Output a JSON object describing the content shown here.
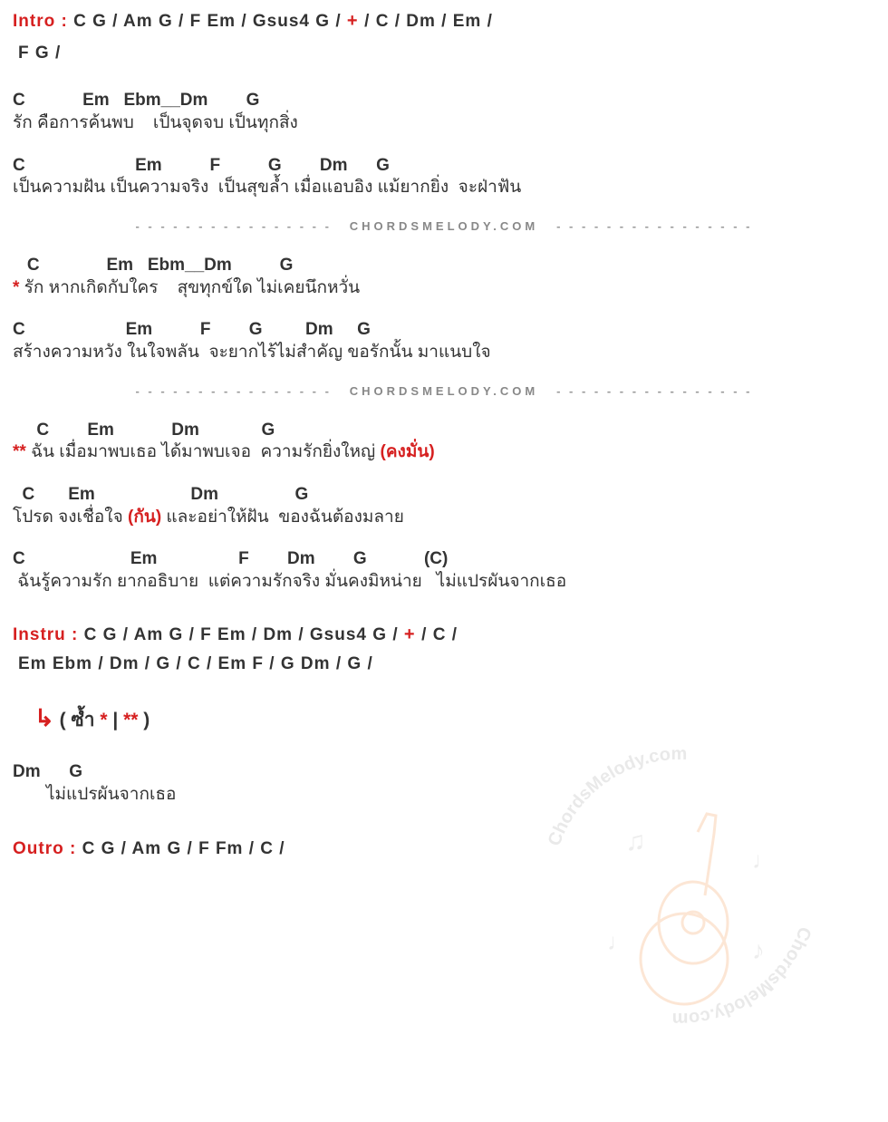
{
  "intro": {
    "label": "Intro :",
    "line1_parts": [
      "C",
      "G",
      "/",
      "Am",
      "G",
      "/",
      "F",
      "Em",
      "/",
      "Gsus4",
      "G",
      "/",
      "+",
      "/",
      "C",
      "/",
      "Dm",
      "/",
      "Em",
      "/"
    ],
    "line2_parts": [
      "F",
      "G",
      "/"
    ]
  },
  "verse1": {
    "line1": {
      "chords": "C            Em   Ebm__Dm        G",
      "lyrics": "รัก คือการค้นพบ    เป็นจุดจบ เป็นทุกสิ่ง"
    },
    "line2": {
      "chords": "C                       Em          F          G        Dm      G",
      "lyrics": "เป็นความฝัน เป็นความจริง  เป็นสุขล้ำ เมื่อแอบอิง แม้ยากยิ่ง  จะฝ่าฟัน"
    }
  },
  "divider": {
    "dashes": "- - - - - - - - - - - - - - - -",
    "brand": "CHORDSMELODY.COM"
  },
  "verse2": {
    "marker": "*",
    "line1": {
      "chords": "   C              Em   Ebm__Dm          G",
      "lyrics": " รัก หากเกิดกับใคร    สุขทุกข์ใด ไม่เคยนึกหวั่น"
    },
    "line2": {
      "chords": "C                     Em          F        G         Dm     G",
      "lyrics": "สร้างความหวัง ในใจพลัน  จะยากไร้ไม่สำคัญ ขอรักนั้น มาแนบใจ"
    }
  },
  "chorus": {
    "marker": "**",
    "line1": {
      "chords": "     C        Em            Dm             G",
      "lyrics_pre": " ฉัน เมื่อมาพบเธอ ได้มาพบเจอ  ความรักยิ่งใหญ่ ",
      "lyrics_red": "(คงมั่น)"
    },
    "line2": {
      "chords": "  C       Em                    Dm                G",
      "lyrics_pre": "โปรด จงเชื่อใจ ",
      "lyrics_red": "(กัน)",
      "lyrics_post": " และอย่าให้ฝัน  ของฉันต้องมลาย"
    },
    "line3": {
      "chords": "C                      Em                 F        Dm        G            (C)",
      "lyrics": " ฉันรู้ความรัก ยากอธิบาย  แต่ความรักจริง มั่นคงมิหน่าย   ไม่แปรผันจากเธอ"
    }
  },
  "instru": {
    "label": "Instru :",
    "line1_parts": [
      "C",
      "G",
      "/",
      "Am",
      "G",
      "/",
      "F",
      "Em",
      "/",
      "Dm",
      "/",
      "Gsus4",
      "G",
      "/",
      "+",
      "/",
      "C",
      "/"
    ],
    "line2_parts": [
      "Em",
      "Ebm",
      "/",
      "Dm",
      "/",
      "G",
      "/",
      "C",
      "/",
      "Em",
      "F",
      "/",
      "G",
      "Dm",
      "/",
      "G",
      "/"
    ]
  },
  "repeat": {
    "arrow": "↳",
    "text_open": "( ซ้ำ ",
    "star1": "*",
    "pipe": " | ",
    "star2": "**",
    "text_close": " )"
  },
  "coda": {
    "chords": "Dm      G",
    "lyrics": "       ไม่แปรผันจากเธอ"
  },
  "outro": {
    "label": "Outro :",
    "parts": [
      "C",
      "G",
      "/",
      "Am",
      "G",
      "/",
      "F",
      "Fm",
      "/",
      "C",
      "/"
    ]
  },
  "colors": {
    "red": "#d62020",
    "text": "#333333",
    "divider": "#999999"
  }
}
